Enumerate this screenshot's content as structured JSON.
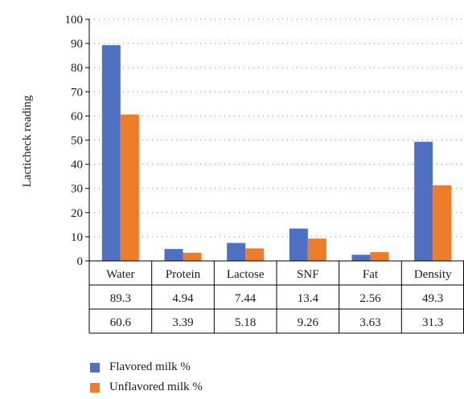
{
  "chart_data": {
    "type": "bar",
    "title": "",
    "xlabel": "",
    "ylabel": "Lacticheck reading",
    "ylim": [
      0,
      100
    ],
    "yticks": [
      0,
      10,
      20,
      30,
      40,
      50,
      60,
      70,
      80,
      90,
      100
    ],
    "grid": true,
    "legend_position": "bottom-left",
    "data_table": true,
    "categories": [
      "Water",
      "Protein",
      "Lactose",
      "SNF",
      "Fat",
      "Density"
    ],
    "series": [
      {
        "name": "Flavored milk %",
        "color": "#4f70c1",
        "values": [
          89.3,
          4.94,
          7.44,
          13.4,
          2.56,
          49.3
        ]
      },
      {
        "name": "Unflavored milk %",
        "color": "#ee7d2b",
        "values": [
          60.6,
          3.39,
          5.18,
          9.26,
          3.63,
          31.3
        ]
      }
    ]
  }
}
